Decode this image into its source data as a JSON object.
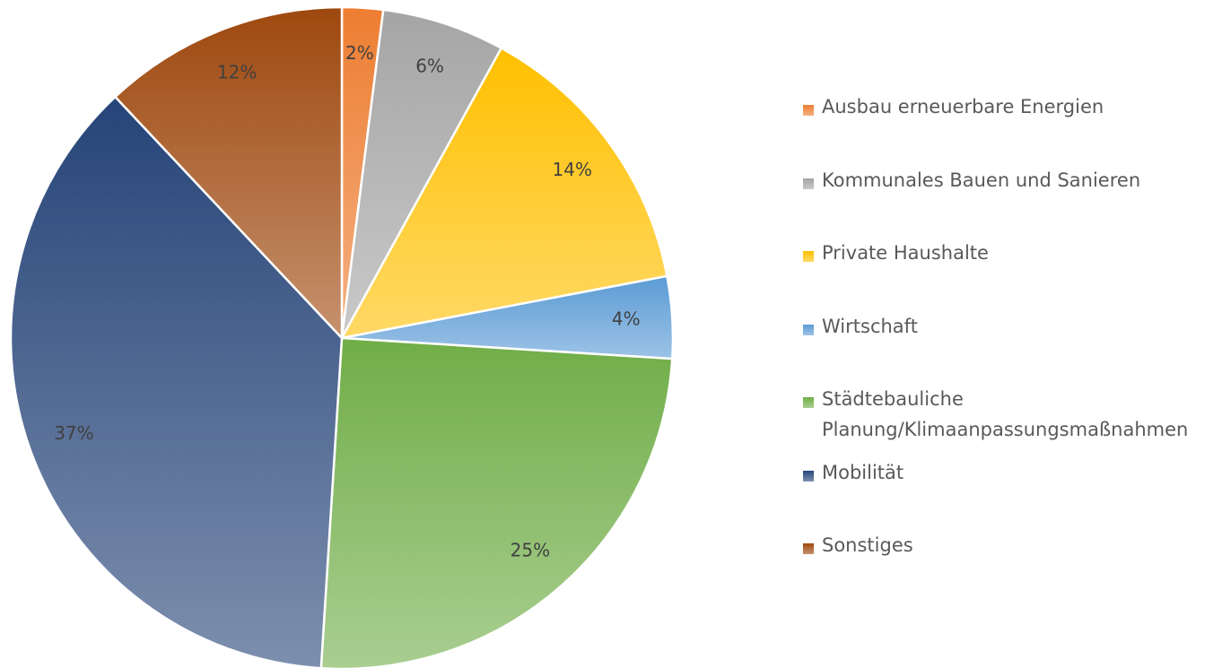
{
  "chart_data": {
    "type": "pie",
    "categories": [
      "Ausbau erneuerbare Energien",
      "Kommunales Bauen und Sanieren",
      "Private Haushalte",
      "Wirtschaft",
      "Städtebauliche Planung/Klimaanpassungsmaßnahmen",
      "Mobilität",
      "Sonstiges"
    ],
    "values": [
      2,
      6,
      14,
      4,
      25,
      37,
      12
    ],
    "value_labels": [
      "2%",
      "6%",
      "14%",
      "4%",
      "25%",
      "37%",
      "12%"
    ],
    "colors": [
      "#ed7d31",
      "#a5a5a5",
      "#ffc000",
      "#5b9bd5",
      "#70ad47",
      "#264478",
      "#9e480e"
    ],
    "legend": "right"
  }
}
